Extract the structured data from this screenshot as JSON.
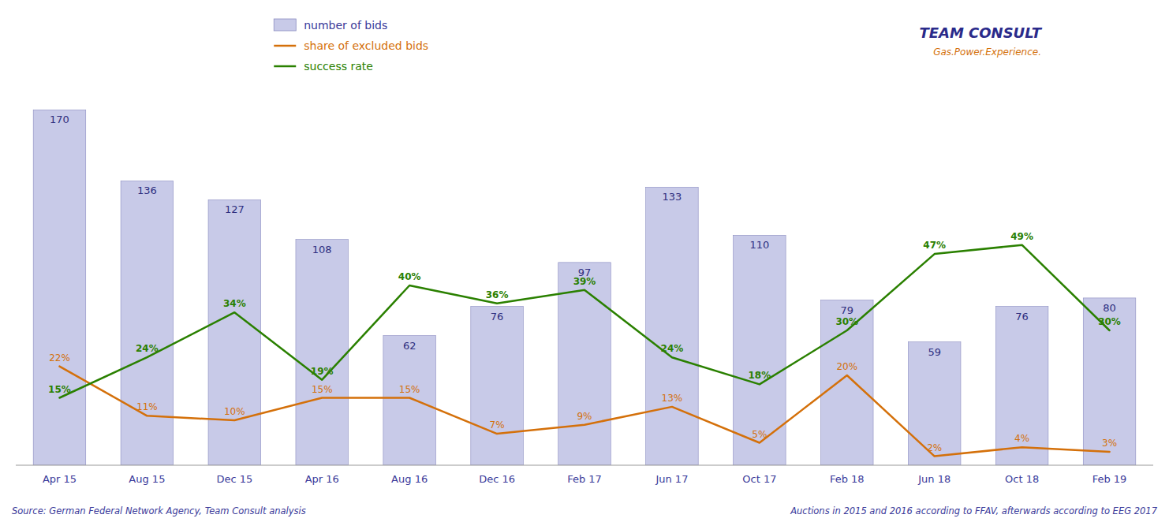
{
  "chart_data": {
    "type": "bar",
    "categories": [
      "Apr 15",
      "Aug 15",
      "Dec 15",
      "Apr 16",
      "Aug 16",
      "Dec 16",
      "Feb 17",
      "Jun 17",
      "Oct 17",
      "Feb 18",
      "Jun 18",
      "Oct 18",
      "Feb 19"
    ],
    "series": [
      {
        "name": "number of bids",
        "type": "bar",
        "color": "#c8caE8",
        "values": [
          170,
          136,
          127,
          108,
          62,
          76,
          97,
          133,
          110,
          79,
          59,
          76,
          80
        ]
      },
      {
        "name": "share of excluded bids",
        "type": "line",
        "axis": "y2",
        "color": "#d4700a",
        "values": [
          22,
          11,
          10,
          15,
          15,
          7,
          9,
          13,
          5,
          20,
          2,
          4,
          3
        ],
        "value_labels": [
          "22%",
          "11%",
          "10%",
          "15%",
          "15%",
          "7%",
          "9%",
          "13%",
          "5%",
          "20%",
          "2%",
          "4%",
          "3%"
        ]
      },
      {
        "name": "success rate",
        "type": "line",
        "axis": "y2",
        "color": "#2a8000",
        "values": [
          15,
          24,
          34,
          19,
          40,
          36,
          39,
          24,
          18,
          30,
          47,
          49,
          30
        ],
        "value_labels": [
          "15%",
          "24%",
          "34%",
          "19%",
          "40%",
          "36%",
          "39%",
          "24%",
          "18%",
          "30%",
          "47%",
          "49%",
          "30%"
        ]
      }
    ],
    "ylim": [
      0,
      215
    ],
    "y2lim": [
      0,
      100
    ],
    "tick_labels": "x",
    "data_labels": true,
    "legend": "upper left",
    "annotations": [
      "Source: German Federal Network Agency, Team Consult analysis",
      "Auctions in 2015 and 2016 according to FFAV, afterwards according to EEG 2017",
      "TEAM CONSULT",
      "Gas.Power.Experience."
    ]
  }
}
